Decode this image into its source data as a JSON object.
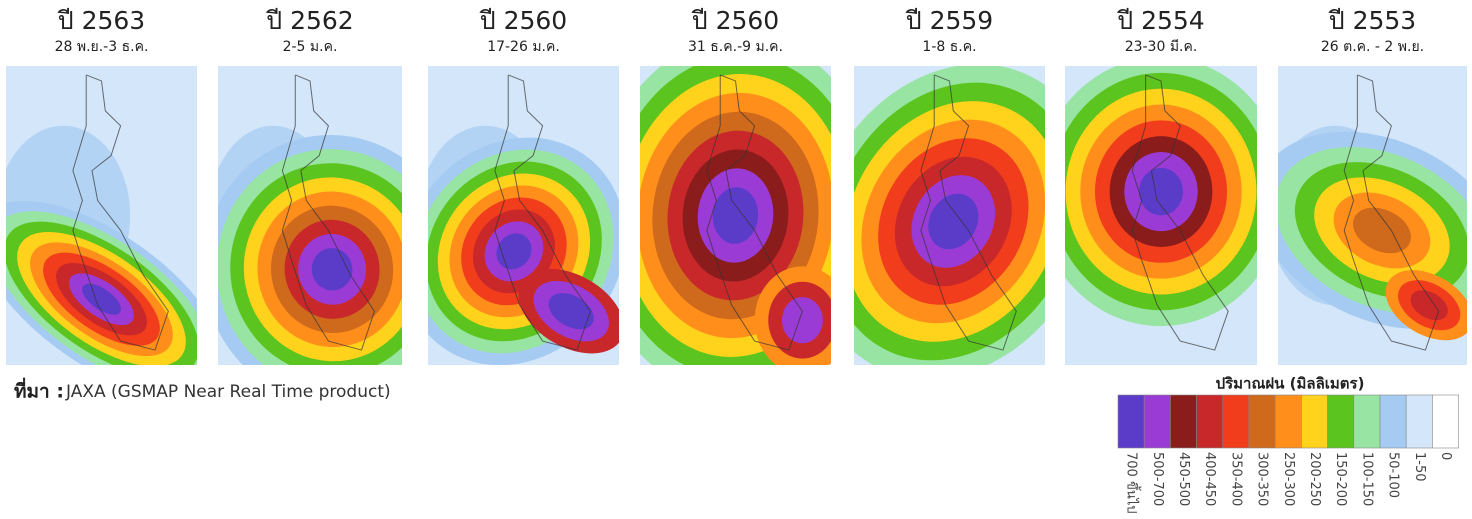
{
  "panels": [
    {
      "title": "ปี 2563",
      "subtitle": "28 พ.ย.-3 ธ.ค."
    },
    {
      "title": "ปี 2562",
      "subtitle": "2-5 ม.ค."
    },
    {
      "title": "ปี 2560",
      "subtitle": "17-26 ม.ค."
    },
    {
      "title": "ปี 2560",
      "subtitle": "31 ธ.ค.-9 ม.ค."
    },
    {
      "title": "ปี 2559",
      "subtitle": "1-8 ธ.ค."
    },
    {
      "title": "ปี 2554",
      "subtitle": "23-30 มี.ค."
    },
    {
      "title": "ปี 2553",
      "subtitle": "26 ต.ค. - 2 พ.ย."
    }
  ],
  "source": {
    "label": "ที่มา :",
    "text": "JAXA (GSMAP Near Real Time product)"
  },
  "legend": {
    "title": "ปริมาณฝน (มิลลิเมตร)",
    "items": [
      {
        "label": "700 ขึ้นไป",
        "color": "#5b3cc9"
      },
      {
        "label": "500-700",
        "color": "#9b3bd6"
      },
      {
        "label": "450-500",
        "color": "#8a1c1c"
      },
      {
        "label": "400-450",
        "color": "#c9282b"
      },
      {
        "label": "350-400",
        "color": "#f23d1c"
      },
      {
        "label": "300-350",
        "color": "#cf6a1c"
      },
      {
        "label": "250-300",
        "color": "#ff8f1a"
      },
      {
        "label": "200-250",
        "color": "#ffd31c"
      },
      {
        "label": "150-200",
        "color": "#5cc41e"
      },
      {
        "label": "100-150",
        "color": "#98e4a2"
      },
      {
        "label": "50-100",
        "color": "#a5cbf2"
      },
      {
        "label": "1-50",
        "color": "#d3e6fa"
      },
      {
        "label": "0",
        "color": "#ffffff"
      }
    ]
  }
}
